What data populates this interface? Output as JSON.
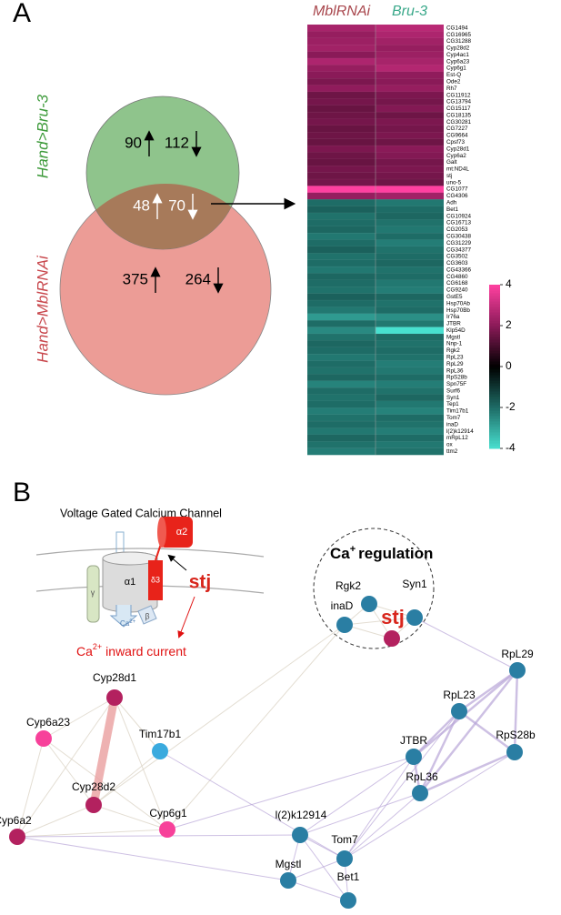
{
  "panel_a": {
    "label": "A",
    "venn": {
      "top_set": "Hand>Bru-3",
      "bottom_set": "Hand>MblRNAi",
      "top_up": 90,
      "top_down": 112,
      "shared_up": 48,
      "shared_down": 70,
      "bottom_up": 375,
      "bottom_down": 264,
      "top_color": "#8fc48c",
      "bottom_color": "#ec9c96",
      "overlap_color": "#a77a5a"
    },
    "heatmap": {
      "columns": [
        "MblRNAi",
        "Bru-3"
      ],
      "column_colors": [
        "#a8464c",
        "#3aa88a"
      ],
      "genes": [
        "CG1494",
        "CG16965",
        "CG31288",
        "Cyp28d2",
        "Cyp4ac1",
        "Cyp6a23",
        "Cyp6g1",
        "Est-Q",
        "Ode2",
        "Rh7",
        "CG11912",
        "CG13794",
        "CG15117",
        "CG18135",
        "CG30281",
        "CG7227",
        "CG9664",
        "Cpsf73",
        "Cyp28d1",
        "Cyp6a2",
        "Galt",
        "mt:ND4L",
        "stj",
        "uno-5",
        "CG1077",
        "CG4306",
        "Adh",
        "Bet1",
        "CG10924",
        "CG16713",
        "CG2053",
        "CG30438",
        "CG31229",
        "CG34377",
        "CG3502",
        "CG3603",
        "CG43366",
        "CG4860",
        "CG6168",
        "CG9240",
        "GstE5",
        "Hsp70Ab",
        "Hsp70Bb",
        "Ir76a",
        "JTBR",
        "Klp54D",
        "Mgstl",
        "Nnp-1",
        "Rgk2",
        "RpL23",
        "RpL29",
        "RpL36",
        "RpS28b",
        "Spn75F",
        "Surf6",
        "Syn1",
        "Tep1",
        "Tim17b1",
        "Tom7",
        "inaD",
        "l(2)k12914",
        "mRpL12",
        "ox",
        "ttm2"
      ],
      "values": [
        [
          2.5,
          2.8
        ],
        [
          2.2,
          2.6
        ],
        [
          2.3,
          2.4
        ],
        [
          2.4,
          2.2
        ],
        [
          2,
          2.3
        ],
        [
          2.6,
          2.5
        ],
        [
          2.2,
          2.7
        ],
        [
          2,
          2.1
        ],
        [
          1.8,
          2
        ],
        [
          2.1,
          2.2
        ],
        [
          1.6,
          1.8
        ],
        [
          1.7,
          1.7
        ],
        [
          1.5,
          1.9
        ],
        [
          1.6,
          1.6
        ],
        [
          1.7,
          1.8
        ],
        [
          1.5,
          1.7
        ],
        [
          1.6,
          1.8
        ],
        [
          1.5,
          1.6
        ],
        [
          1.8,
          2
        ],
        [
          1.6,
          1.9
        ],
        [
          1.5,
          1.7
        ],
        [
          1.7,
          1.8
        ],
        [
          1.6,
          1.7
        ],
        [
          1.7,
          1.6
        ],
        [
          4,
          4
        ],
        [
          2.2,
          2.4
        ],
        [
          -2,
          -2.2
        ],
        [
          -1.8,
          -2
        ],
        [
          -2.1,
          -1.9
        ],
        [
          -2,
          -2.1
        ],
        [
          -1.9,
          -2.2
        ],
        [
          -2.2,
          -2
        ],
        [
          -2,
          -2.3
        ],
        [
          -1.8,
          -2.1
        ],
        [
          -2.1,
          -2
        ],
        [
          -2,
          -1.9
        ],
        [
          -2.2,
          -2.1
        ],
        [
          -1.9,
          -2
        ],
        [
          -2,
          -2.2
        ],
        [
          -2.1,
          -2.3
        ],
        [
          -1.8,
          -1.9
        ],
        [
          -2,
          -2.1
        ],
        [
          -2.2,
          -2
        ],
        [
          -2.8,
          -2.6
        ],
        [
          -2,
          -2.2
        ],
        [
          -2.5,
          -4
        ],
        [
          -2.1,
          -2
        ],
        [
          -1.9,
          -2.1
        ],
        [
          -2,
          -2
        ],
        [
          -2.2,
          -2.1
        ],
        [
          -2,
          -2.3
        ],
        [
          -2.1,
          -2.2
        ],
        [
          -1.9,
          -2
        ],
        [
          -2.4,
          -2.3
        ],
        [
          -2,
          -2.1
        ],
        [
          -2.1,
          -1.9
        ],
        [
          -2,
          -2.2
        ],
        [
          -2.3,
          -2.4
        ],
        [
          -2.1,
          -2
        ],
        [
          -2,
          -2.1
        ],
        [
          -2.2,
          -2.3
        ],
        [
          -1.9,
          -2
        ],
        [
          -2.1,
          -2.2
        ],
        [
          -2.3,
          -2.1
        ]
      ],
      "zlim": [
        -4,
        4
      ],
      "zticks": [
        4,
        2,
        0,
        -2,
        -4
      ]
    }
  },
  "panel_b": {
    "label": "B",
    "channel": {
      "title": "Voltage Gated Calcium Channel",
      "alpha1": "α1",
      "alpha2": "α2",
      "delta": "δ3",
      "gamma": "γ",
      "beta": "β",
      "ion": "Ca",
      "ion_charge": "2+",
      "stj": "stj",
      "current_ion": "Ca",
      "current_charge": "2+",
      "current": "inward current"
    },
    "group": {
      "ion": "Ca",
      "charge": "+",
      "label": "regulation"
    },
    "nodes": [
      {
        "label": "Rgk2",
        "color": "#2a7ea3"
      },
      {
        "label": "Syn1",
        "color": "#2a7ea3"
      },
      {
        "label": "inaD",
        "color": "#2a7ea3"
      },
      {
        "label": "stj",
        "color": "#b3215f"
      },
      {
        "label": "Cyp28d1",
        "color": "#b3215f"
      },
      {
        "label": "Cyp6a23",
        "color": "#f7419a"
      },
      {
        "label": "Tim17b1",
        "color": "#3aaade"
      },
      {
        "label": "Cyp28d2",
        "color": "#b3215f"
      },
      {
        "label": "Cyp6g1",
        "color": "#f7419a"
      },
      {
        "label": "Cyp6a2",
        "color": "#b3215f"
      },
      {
        "label": "RpL29",
        "color": "#2a7ea3"
      },
      {
        "label": "RpL23",
        "color": "#2a7ea3"
      },
      {
        "label": "RpS28b",
        "color": "#2a7ea3"
      },
      {
        "label": "JTBR",
        "color": "#2a7ea3"
      },
      {
        "label": "RpL36",
        "color": "#2a7ea3"
      },
      {
        "label": "l(2)k12914",
        "color": "#2a7ea3"
      },
      {
        "label": "Tom7",
        "color": "#2a7ea3"
      },
      {
        "label": "Mgstl",
        "color": "#2a7ea3"
      },
      {
        "label": "Bet1",
        "color": "#2a7ea3"
      }
    ]
  }
}
